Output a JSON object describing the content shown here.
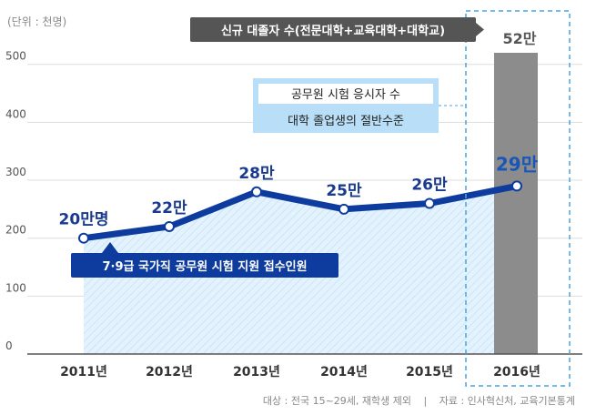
{
  "chart_data": {
    "type": "line",
    "unit_label": "(단위 : 천명)",
    "categories": [
      "2011년",
      "2012년",
      "2013년",
      "2014년",
      "2015년",
      "2016년"
    ],
    "yticks": [
      0,
      100,
      200,
      300,
      400,
      500
    ],
    "ylim": [
      0,
      520
    ],
    "series": [
      {
        "name": "7·9급 국가직 공무원 시험 지원 접수인원",
        "values": [
          200,
          220,
          280,
          250,
          260,
          290
        ],
        "labels": [
          "20만명",
          "22만",
          "28만",
          "25만",
          "26만",
          "29만"
        ],
        "color": "#0d3b9e",
        "fill_color": "#d6ecfa"
      }
    ],
    "bar": {
      "name": "신규 대졸자 수(전문대학+교육대학+대학교)",
      "category": "2016년",
      "value": 520,
      "label": "52만",
      "color": "#8c8c8c"
    },
    "annotation": {
      "line1": "공무원 시험 응시자 수",
      "line2": "대학 졸업생의 절반수준"
    },
    "footer": {
      "left": "대상 : 전국 15~29세, 재학생 제외",
      "separator": "|",
      "right": "자료 : 인사혁신처, 교육기본통계"
    },
    "colors": {
      "accent_dark": "#0d3b9e",
      "accent_light": "#4aa3df",
      "dashed_box": "#4aa3df",
      "tag_dark_bg": "#555555",
      "annotation_bg": "#b9def7"
    }
  }
}
